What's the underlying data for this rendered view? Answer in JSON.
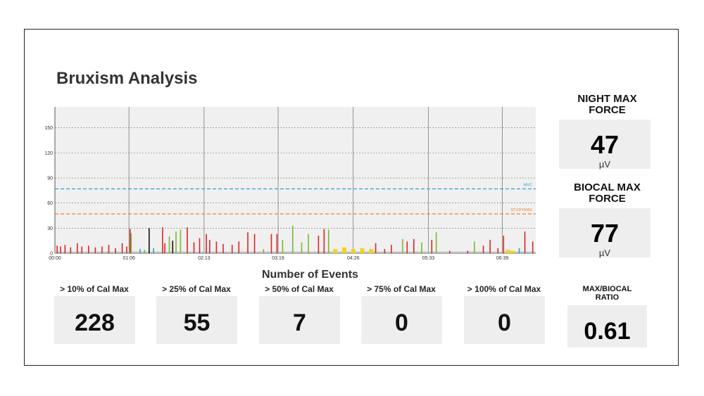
{
  "header": {
    "title": "Bruxism Analysis"
  },
  "night_max": {
    "label_line1": "NIGHT MAX",
    "label_line2": "FORCE",
    "value": "47",
    "unit": "µV"
  },
  "biocal_max": {
    "label_line1": "BIOCAL MAX",
    "label_line2": "FORCE",
    "value": "77",
    "unit": "µV"
  },
  "ratio": {
    "label_line1": "MAX/BIOCAL",
    "label_line2": "RATIO",
    "value": "0.61"
  },
  "events": {
    "title": "Number of Events",
    "items": [
      {
        "label": "> 10% of Cal Max",
        "value": "228"
      },
      {
        "label": "> 25% of Cal Max",
        "value": "55"
      },
      {
        "label": "> 50% of Cal Max",
        "value": "7"
      },
      {
        "label": "> 75% of Cal Max",
        "value": "0"
      },
      {
        "label": "> 100% of Cal Max",
        "value": "0"
      }
    ]
  },
  "chart_data": {
    "type": "bar",
    "x_ticks": [
      "00:00",
      "01:06",
      "02:13",
      "03:19",
      "04:26",
      "05:33",
      "06:39"
    ],
    "y_ticks": [
      0,
      30,
      60,
      90,
      120,
      150
    ],
    "ylim": [
      0,
      175
    ],
    "grid": true,
    "reference_lines": [
      {
        "label": "MVC",
        "value": 77,
        "color": "#2a9fd6"
      },
      {
        "label": "STUDYMAX",
        "value": 47,
        "color": "#f0822a"
      }
    ],
    "colors": {
      "red": "#d62728",
      "green": "#7cb82f",
      "yellow": "#f2d31b",
      "blue": "#2a9fd6",
      "black": "#111111"
    },
    "events": [
      {
        "t": "00:02",
        "v": 9,
        "color": "red"
      },
      {
        "t": "00:05",
        "v": 8,
        "color": "red"
      },
      {
        "t": "00:09",
        "v": 10,
        "color": "red"
      },
      {
        "t": "00:14",
        "v": 7,
        "color": "red"
      },
      {
        "t": "00:20",
        "v": 12,
        "color": "red"
      },
      {
        "t": "00:24",
        "v": 8,
        "color": "red"
      },
      {
        "t": "00:30",
        "v": 9,
        "color": "red"
      },
      {
        "t": "00:36",
        "v": 7,
        "color": "red"
      },
      {
        "t": "00:42",
        "v": 8,
        "color": "red"
      },
      {
        "t": "00:48",
        "v": 10,
        "color": "red"
      },
      {
        "t": "00:54",
        "v": 6,
        "color": "red"
      },
      {
        "t": "01:00",
        "v": 12,
        "color": "red"
      },
      {
        "t": "01:04",
        "v": 8,
        "color": "red"
      },
      {
        "t": "01:07",
        "v": 29,
        "color": "red"
      },
      {
        "t": "01:08",
        "v": 24,
        "color": "green"
      },
      {
        "t": "01:16",
        "v": 5,
        "color": "blue"
      },
      {
        "t": "01:20",
        "v": 4,
        "color": "green"
      },
      {
        "t": "01:24",
        "v": 30,
        "color": "black"
      },
      {
        "t": "01:28",
        "v": 6,
        "color": "blue"
      },
      {
        "t": "01:36",
        "v": 31,
        "color": "red"
      },
      {
        "t": "01:38",
        "v": 12,
        "color": "red"
      },
      {
        "t": "01:42",
        "v": 20,
        "color": "green"
      },
      {
        "t": "01:45",
        "v": 15,
        "color": "black"
      },
      {
        "t": "01:48",
        "v": 26,
        "color": "green"
      },
      {
        "t": "01:52",
        "v": 28,
        "color": "green"
      },
      {
        "t": "01:58",
        "v": 31,
        "color": "red"
      },
      {
        "t": "02:04",
        "v": 13,
        "color": "red"
      },
      {
        "t": "02:09",
        "v": 18,
        "color": "red"
      },
      {
        "t": "02:15",
        "v": 23,
        "color": "red"
      },
      {
        "t": "02:18",
        "v": 16,
        "color": "red"
      },
      {
        "t": "02:24",
        "v": 14,
        "color": "red"
      },
      {
        "t": "02:30",
        "v": 11,
        "color": "red"
      },
      {
        "t": "02:38",
        "v": 10,
        "color": "red"
      },
      {
        "t": "02:44",
        "v": 14,
        "color": "red"
      },
      {
        "t": "02:52",
        "v": 25,
        "color": "red"
      },
      {
        "t": "02:58",
        "v": 23,
        "color": "red"
      },
      {
        "t": "03:06",
        "v": 5,
        "color": "green"
      },
      {
        "t": "03:13",
        "v": 23,
        "color": "red"
      },
      {
        "t": "03:18",
        "v": 23,
        "color": "red"
      },
      {
        "t": "03:23",
        "v": 16,
        "color": "green"
      },
      {
        "t": "03:32",
        "v": 33,
        "color": "green"
      },
      {
        "t": "03:40",
        "v": 13,
        "color": "green"
      },
      {
        "t": "03:46",
        "v": 23,
        "color": "green"
      },
      {
        "t": "03:55",
        "v": 21,
        "color": "red"
      },
      {
        "t": "04:00",
        "v": 29,
        "color": "red"
      },
      {
        "t": "04:04",
        "v": 28,
        "color": "green"
      },
      {
        "t": "04:10",
        "v": 5,
        "color": "yellow"
      },
      {
        "t": "04:18",
        "v": 7,
        "color": "yellow"
      },
      {
        "t": "04:26",
        "v": 5,
        "color": "yellow"
      },
      {
        "t": "04:34",
        "v": 6,
        "color": "yellow"
      },
      {
        "t": "04:42",
        "v": 5,
        "color": "yellow"
      },
      {
        "t": "04:46",
        "v": 12,
        "color": "red"
      },
      {
        "t": "04:54",
        "v": 5,
        "color": "red"
      },
      {
        "t": "05:00",
        "v": 10,
        "color": "red"
      },
      {
        "t": "05:10",
        "v": 17,
        "color": "green"
      },
      {
        "t": "05:14",
        "v": 14,
        "color": "red"
      },
      {
        "t": "05:20",
        "v": 17,
        "color": "red"
      },
      {
        "t": "05:27",
        "v": 13,
        "color": "green"
      },
      {
        "t": "05:36",
        "v": 16,
        "color": "red"
      },
      {
        "t": "05:40",
        "v": 25,
        "color": "green"
      },
      {
        "t": "05:52",
        "v": 3,
        "color": "red"
      },
      {
        "t": "06:08",
        "v": 3,
        "color": "red"
      },
      {
        "t": "06:14",
        "v": 14,
        "color": "green"
      },
      {
        "t": "06:22",
        "v": 9,
        "color": "red"
      },
      {
        "t": "06:28",
        "v": 16,
        "color": "red"
      },
      {
        "t": "06:35",
        "v": 6,
        "color": "red"
      },
      {
        "t": "06:40",
        "v": 21,
        "color": "red"
      },
      {
        "t": "06:44",
        "v": 4,
        "color": "yellow"
      },
      {
        "t": "06:48",
        "v": 3,
        "color": "yellow"
      },
      {
        "t": "06:54",
        "v": 6,
        "color": "blue"
      },
      {
        "t": "06:59",
        "v": 26,
        "color": "red"
      },
      {
        "t": "07:06",
        "v": 14,
        "color": "red"
      }
    ]
  }
}
